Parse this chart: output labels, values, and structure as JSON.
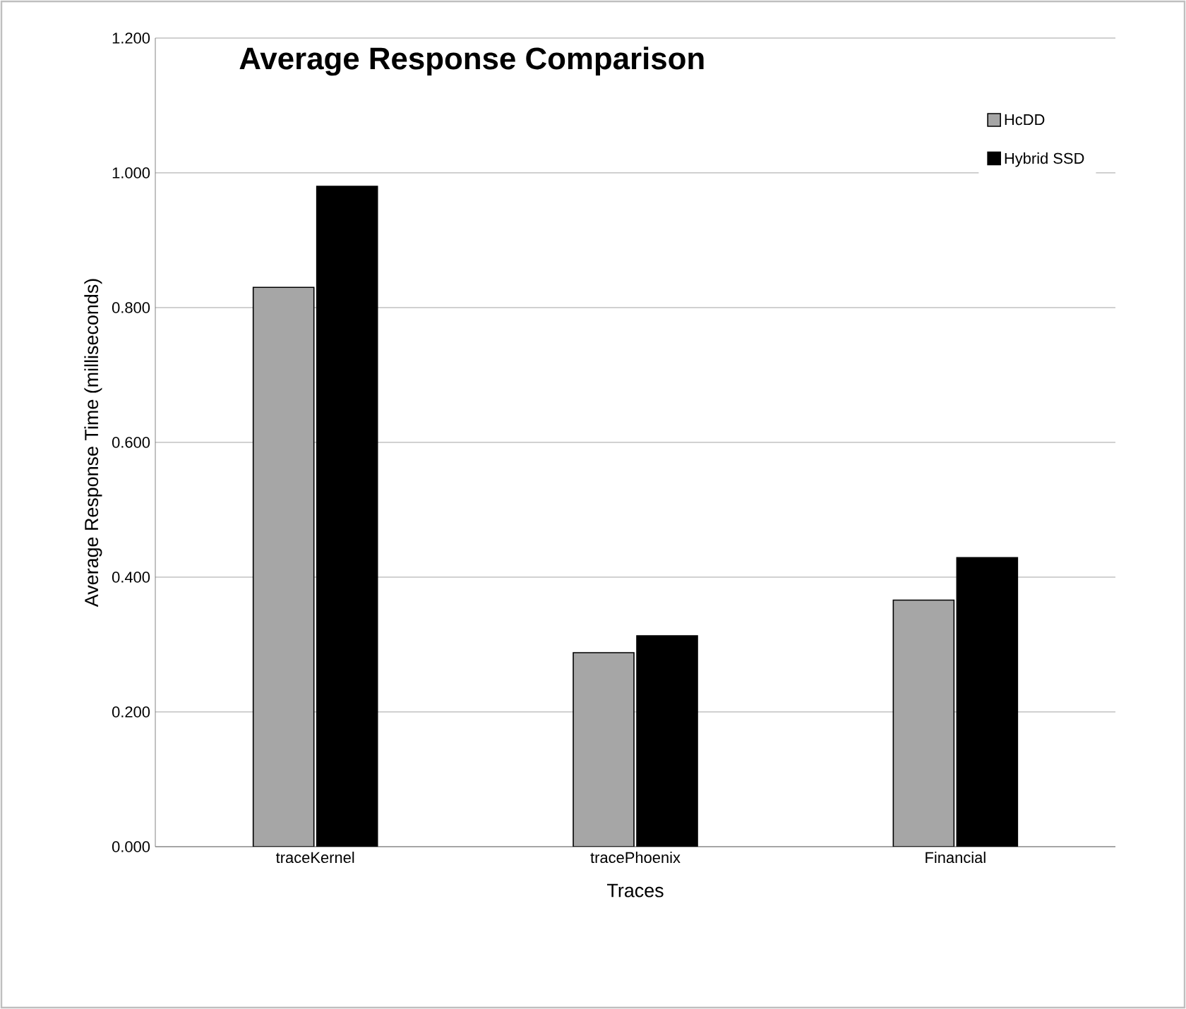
{
  "chart_data": {
    "type": "bar",
    "title": "Average Response Comparison",
    "xlabel": "Traces",
    "ylabel": "Average Response Time (milliseconds)",
    "categories": [
      "traceKernel",
      "tracePhoenix",
      "Financial"
    ],
    "series": [
      {
        "name": "HcDD",
        "color": "#a6a6a6",
        "values": [
          0.83,
          0.288,
          0.366
        ]
      },
      {
        "name": "Hybrid SSD",
        "color": "#000000",
        "values": [
          0.98,
          0.313,
          0.429
        ]
      }
    ],
    "ylim": [
      0,
      1.2
    ],
    "yticks": [
      {
        "value": 0,
        "label": "0.000"
      },
      {
        "value": 0.2,
        "label": "0.200"
      },
      {
        "value": 0.4,
        "label": "0.400"
      },
      {
        "value": 0.6,
        "label": "0.600"
      },
      {
        "value": 0.8,
        "label": "0.800"
      },
      {
        "value": 1.0,
        "label": "1.000"
      },
      {
        "value": 1.2,
        "label": "1.200"
      }
    ],
    "grid": "y",
    "legend": "top right"
  }
}
